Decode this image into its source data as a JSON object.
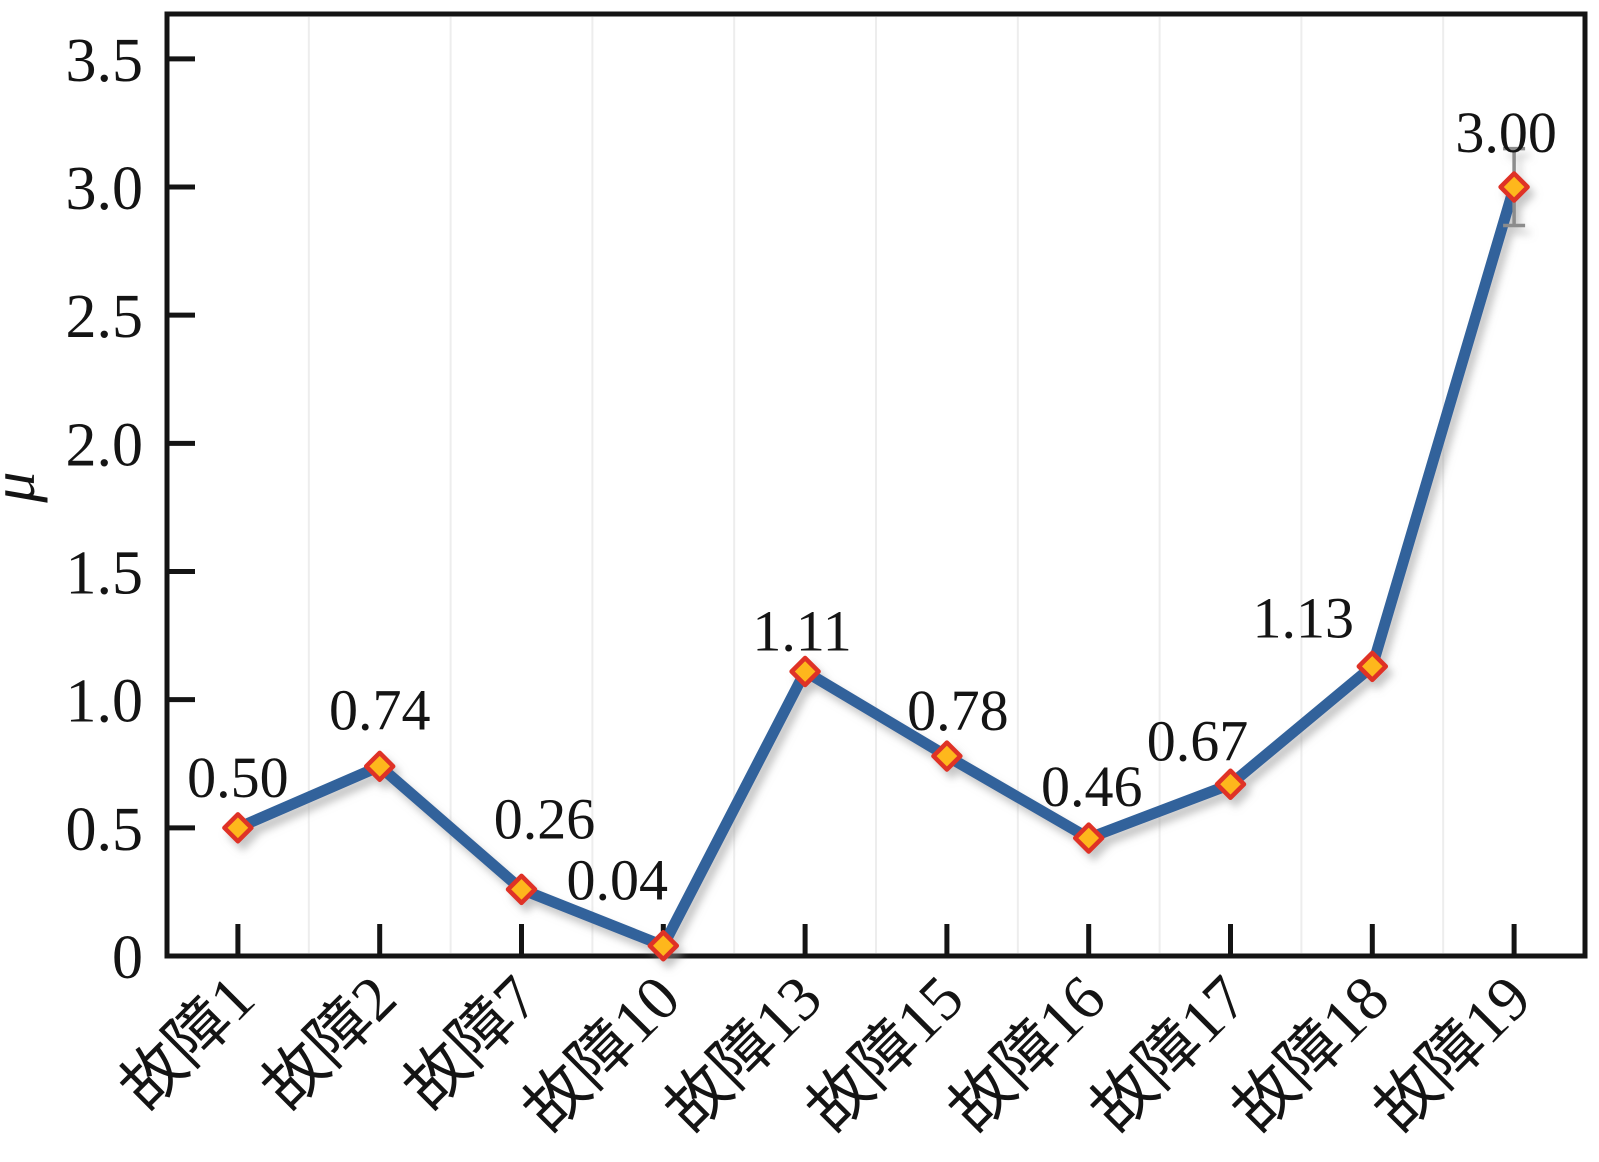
{
  "chart_data": {
    "type": "line",
    "title": "",
    "xlabel": "",
    "ylabel": "μ",
    "categories": [
      "故障1",
      "故障2",
      "故障7",
      "故障10",
      "故障13",
      "故障15",
      "故障16",
      "故障17",
      "故障18",
      "故障19"
    ],
    "values": [
      0.5,
      0.74,
      0.26,
      0.04,
      1.11,
      0.78,
      0.46,
      0.67,
      1.13,
      3.0
    ],
    "point_labels": [
      "0.50",
      "0.74",
      "0.26",
      "0.04",
      "1.11",
      "0.78",
      "0.46",
      "0.67",
      "1.13",
      "3.00"
    ],
    "ylim": [
      0,
      3.675
    ],
    "yticks": [
      0,
      0.5,
      1.0,
      1.5,
      2.0,
      2.5,
      3.0,
      3.5
    ],
    "ytick_labels": [
      "0",
      "0.5",
      "1.0",
      "1.5",
      "2.0",
      "2.5",
      "3.0",
      "3.5"
    ],
    "grid": "faint vertical minor gridlines between categories",
    "legend": "none",
    "marker": "diamond",
    "error_bar": {
      "category": "故障19",
      "index": 9,
      "plus": 0.15,
      "minus": 0.15
    },
    "colors": {
      "line": "#31629B",
      "marker_fill": "#FEB71B",
      "marker_edge": "#DF3128",
      "axis": "#141414",
      "minor_grid": "#EDEDED",
      "error_bar": "#8C8C8C"
    }
  }
}
